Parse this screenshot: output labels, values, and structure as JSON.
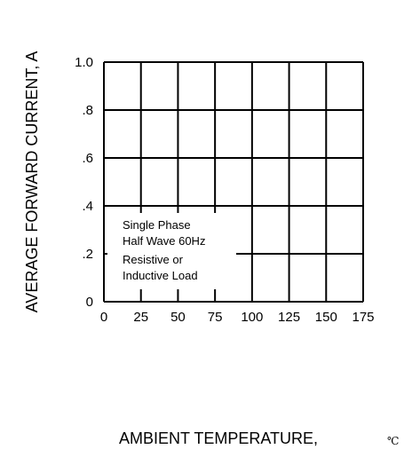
{
  "chart_data": {
    "type": "line",
    "title": "",
    "xlabel": "AMBIENT TEMPERATURE,",
    "xlabel_unit": "℃",
    "ylabel": "AVERAGE  FORWARD CURRENT, A",
    "xlim": [
      0,
      175
    ],
    "ylim": [
      0,
      1.0
    ],
    "x_ticks": [
      0,
      25,
      50,
      75,
      100,
      125,
      150,
      175
    ],
    "x_tick_labels": [
      "0",
      "25",
      "50",
      "75",
      "100",
      "125",
      "150",
      "175"
    ],
    "y_ticks": [
      0,
      0.2,
      0.4,
      0.6,
      0.8,
      1.0
    ],
    "y_tick_labels": [
      "0",
      ".2",
      ".4",
      ".6",
      ".8",
      "1.0"
    ],
    "grid": true,
    "series": [],
    "annotation": [
      "Single Phase",
      "Half Wave 60Hz",
      "Resistive or",
      "Inductive Load"
    ]
  },
  "colors": {
    "grid": "#000000",
    "text": "#000000",
    "background": "#ffffff"
  }
}
